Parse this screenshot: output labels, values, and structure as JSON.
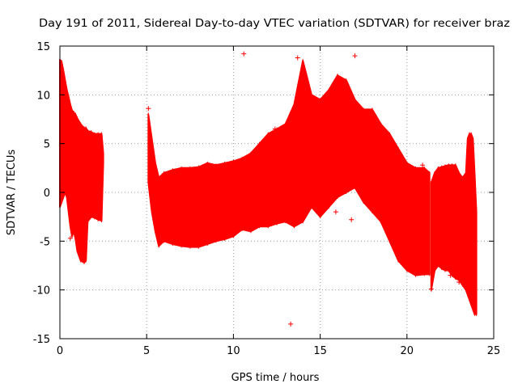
{
  "chart_data": {
    "type": "scatter",
    "title": "Day 191 of 2011, Sidereal Day-to-day VTEC variation (SDTVAR) for receiver braz",
    "xlabel": "GPS time / hours",
    "ylabel": "SDTVAR / TECUs",
    "xlim": [
      0,
      25
    ],
    "ylim": [
      -15,
      15
    ],
    "grid": true,
    "marker": "+",
    "x_ticks": [
      0,
      5,
      10,
      15,
      20,
      25
    ],
    "x_tick_labels": [
      "0",
      "5",
      "10",
      "15",
      "20",
      "25"
    ],
    "y_ticks": [
      -15,
      -10,
      -5,
      0,
      5,
      10,
      15
    ],
    "y_tick_labels": [
      "-15",
      "-10",
      "-5",
      "0",
      "5",
      "10",
      "15"
    ],
    "series": [
      {
        "name": "SDTVAR",
        "color": "#ff0000",
        "band_segments": [
          {
            "x": [
              0.0,
              0.1,
              0.2,
              0.3,
              0.4,
              0.5,
              0.6,
              0.7,
              0.8,
              0.9,
              1.0,
              1.2,
              1.4,
              1.5,
              1.6,
              1.8,
              2.0,
              2.2,
              2.4,
              2.5
            ],
            "upper": [
              13.6,
              13.4,
              12.5,
              11.5,
              10.5,
              9.8,
              9.0,
              8.4,
              8.2,
              8.0,
              7.6,
              7.0,
              6.6,
              6.6,
              6.3,
              6.2,
              6.0,
              6.0,
              6.0,
              4.0
            ],
            "lower": [
              -1.5,
              -1.0,
              -0.5,
              0.0,
              -0.5,
              -2.0,
              -3.5,
              -4.5,
              -4.0,
              -4.8,
              -6.0,
              -7.0,
              -7.2,
              -7.0,
              -3.0,
              -2.5,
              -2.6,
              -2.8,
              -2.9,
              3.0
            ]
          },
          {
            "x": [
              5.1,
              5.3,
              5.5,
              5.7,
              6.0,
              6.5,
              7.0,
              7.5,
              8.0,
              8.5,
              9.0,
              9.5,
              10.0,
              10.5,
              11.0,
              11.5,
              12.0,
              12.5,
              13.0,
              13.5,
              14.0,
              14.5,
              15.0,
              15.5,
              16.0,
              16.5,
              17.0,
              17.5,
              18.0,
              18.5,
              19.0,
              19.5,
              20.0,
              20.5,
              21.0,
              21.3
            ],
            "upper": [
              8.0,
              5.5,
              3.0,
              1.5,
              2.0,
              2.3,
              2.5,
              2.5,
              2.6,
              3.0,
              2.8,
              3.0,
              3.2,
              3.5,
              4.0,
              5.0,
              6.0,
              6.5,
              7.0,
              9.0,
              13.5,
              10.0,
              9.5,
              10.5,
              12.0,
              11.5,
              9.5,
              8.5,
              8.5,
              7.0,
              6.0,
              4.5,
              3.0,
              2.5,
              2.5,
              2.0
            ],
            "lower": [
              1.0,
              -2.0,
              -4.0,
              -5.5,
              -5.0,
              -5.3,
              -5.5,
              -5.6,
              -5.6,
              -5.3,
              -5.0,
              -4.8,
              -4.5,
              -3.8,
              -4.0,
              -3.5,
              -3.5,
              -3.2,
              -3.0,
              -3.5,
              -3.0,
              -1.5,
              -2.5,
              -1.5,
              -0.5,
              0.0,
              0.5,
              -1.0,
              -2.0,
              -3.0,
              -5.0,
              -7.0,
              -8.0,
              -8.5,
              -8.4,
              -8.4
            ]
          },
          {
            "x": [
              21.4,
              21.6,
              21.8,
              22.0,
              22.2,
              22.4,
              22.6,
              22.8,
              23.0,
              23.2,
              23.4,
              23.5,
              23.6,
              23.7,
              23.8,
              23.9,
              24.0
            ],
            "upper": [
              1.0,
              2.0,
              2.5,
              2.6,
              2.7,
              2.8,
              2.8,
              2.8,
              2.0,
              1.5,
              2.0,
              5.5,
              6.0,
              6.0,
              5.5,
              2.0,
              -2.0
            ],
            "lower": [
              -10.0,
              -8.0,
              -7.5,
              -7.8,
              -8.0,
              -8.0,
              -8.5,
              -8.8,
              -9.0,
              -9.5,
              -10.0,
              -10.5,
              -11.0,
              -11.5,
              -12.0,
              -12.5,
              -12.5
            ]
          }
        ],
        "outliers": [
          {
            "x": 0.6,
            "y": -4.7
          },
          {
            "x": 10.6,
            "y": 14.2
          },
          {
            "x": 13.3,
            "y": -13.5
          },
          {
            "x": 13.6,
            "y": 6.2
          },
          {
            "x": 17.0,
            "y": 14.0
          },
          {
            "x": 16.8,
            "y": -2.8
          },
          {
            "x": 16.0,
            "y": 0.5
          },
          {
            "x": 15.9,
            "y": -2.0
          },
          {
            "x": 22.5,
            "y": -8.5
          },
          {
            "x": 23.0,
            "y": -9.2
          },
          {
            "x": 20.7,
            "y": 1.8
          },
          {
            "x": 20.9,
            "y": 2.8
          },
          {
            "x": 21.4,
            "y": -9.9
          },
          {
            "x": 5.1,
            "y": 8.6
          },
          {
            "x": 13.7,
            "y": 13.8
          },
          {
            "x": 19.3,
            "y": 4.5
          },
          {
            "x": 12.4,
            "y": 6.5
          }
        ]
      }
    ]
  }
}
